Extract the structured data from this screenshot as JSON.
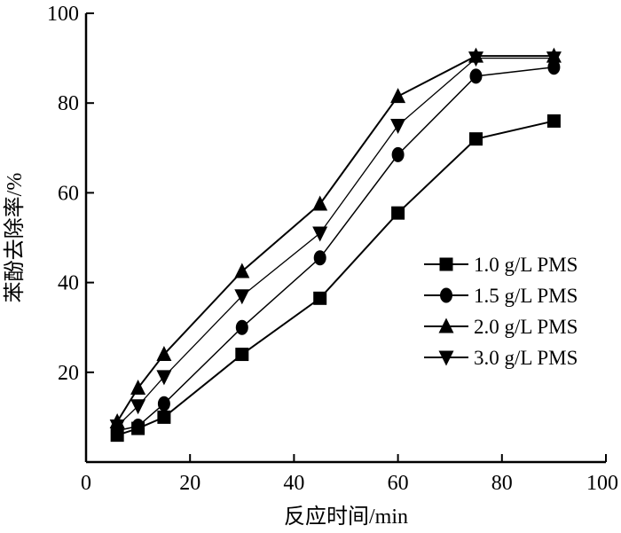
{
  "chart_data": {
    "type": "line",
    "title": "",
    "xlabel": "反应时间/min",
    "ylabel": "苯酚去除率/%",
    "xlim": [
      0,
      100
    ],
    "ylim": [
      0,
      100
    ],
    "xticks": [
      "0",
      "20",
      "40",
      "60",
      "80",
      "100"
    ],
    "yticks": [
      "20",
      "40",
      "60",
      "80",
      "100"
    ],
    "x": [
      6,
      10,
      15,
      30,
      45,
      60,
      75,
      90
    ],
    "grid": false,
    "legend_position": "center-right",
    "series": [
      {
        "name": "1.0 g/L PMS",
        "marker": "square",
        "values": [
          6,
          7.5,
          10,
          24,
          36.5,
          55.5,
          72,
          76
        ]
      },
      {
        "name": "1.5 g/L PMS",
        "marker": "circle",
        "values": [
          7,
          8,
          13,
          30,
          45.5,
          68.5,
          86,
          88
        ]
      },
      {
        "name": "2.0 g/L PMS",
        "marker": "triangle-up",
        "values": [
          9,
          16.5,
          24,
          42.5,
          57.5,
          81.5,
          90.5,
          90.5
        ]
      },
      {
        "name": "3.0 g/L PMS",
        "marker": "triangle-down",
        "values": [
          8,
          12.5,
          19,
          37,
          51,
          75,
          90,
          90
        ]
      }
    ]
  }
}
